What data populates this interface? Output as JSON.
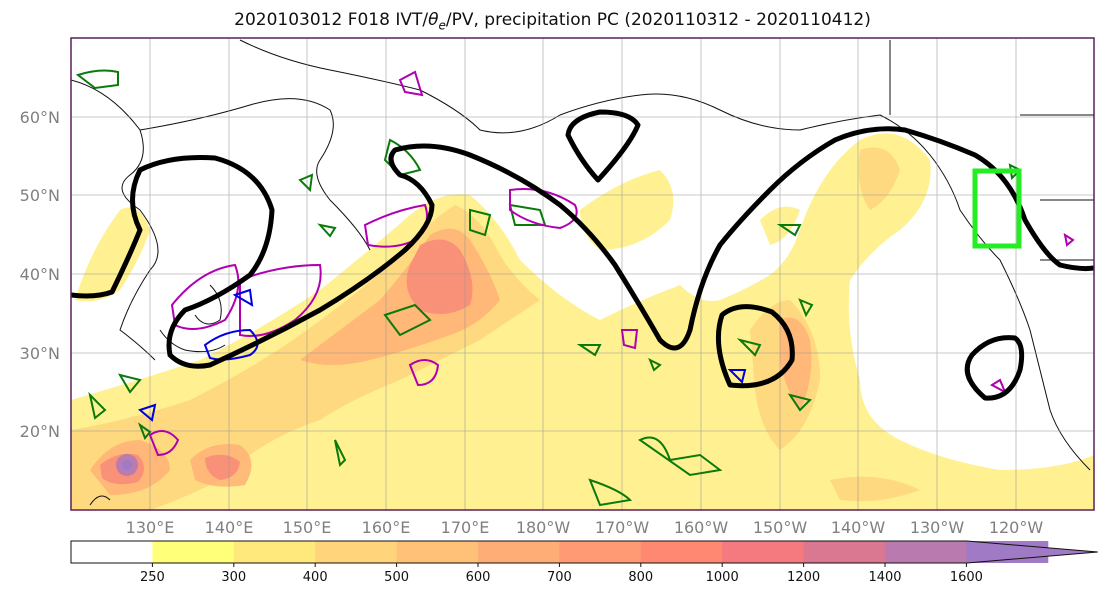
{
  "title": {
    "prefix": "2020103012 F018 IVT/",
    "theta": "θ",
    "theta_sub": "e",
    "suffix": "/PV, precipitation PC (2020110312 - 2020110412)"
  },
  "map": {
    "projection": "PlateCarree",
    "lon_range_east": [
      120,
      250
    ],
    "lat_range": [
      10,
      70
    ],
    "lat_ticks": [
      "60°N",
      "50°N",
      "40°N",
      "30°N",
      "20°N"
    ],
    "lon_ticks": [
      "130°E",
      "140°E",
      "150°E",
      "160°E",
      "170°E",
      "180°W",
      "170°W",
      "160°W",
      "150°W",
      "140°W",
      "130°W",
      "120°W"
    ],
    "gridlines": true,
    "highlight_box": {
      "color": "#22ee22",
      "lon_w": -124.5,
      "lon_e": -119,
      "lat_s": 43.5,
      "lat_n": 53
    }
  },
  "colorbar": {
    "levels": [
      "250",
      "300",
      "400",
      "500",
      "600",
      "700",
      "800",
      "1000",
      "1200",
      "1400",
      "1600"
    ],
    "colors": [
      "#ffffff",
      "#ffff7a",
      "#ffe97d",
      "#ffd47a",
      "#ffc078",
      "#ffad77",
      "#ff9a74",
      "#ff8872",
      "#f47a80",
      "#d97890",
      "#b97ab0",
      "#a17ac6"
    ],
    "extend": "max"
  },
  "contours": {
    "thick_black": "precipitation PC",
    "green": "θe",
    "magenta": "PV",
    "blue": "PV"
  }
}
